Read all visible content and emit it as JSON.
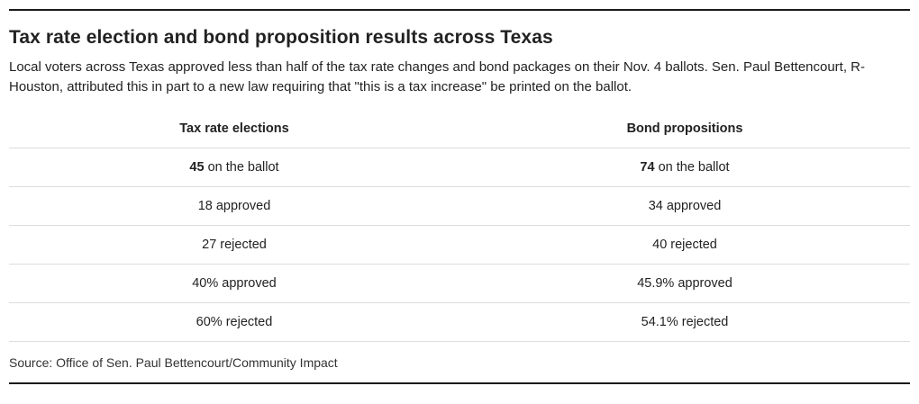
{
  "header": {
    "title": "Tax rate election and bond proposition results across Texas",
    "subtitle": "Local voters across Texas approved less than half of the tax rate changes and bond packages on their Nov. 4 ballots. Sen. Paul Bettencourt, R-Houston, attributed this in part to a new law requiring that \"this is a tax increase\" be printed on the ballot."
  },
  "table": {
    "columns": {
      "tax": "Tax rate elections",
      "bond": "Bond propositions"
    },
    "rows": [
      {
        "cells": [
          {
            "strong": "45",
            "text": " on the ballot"
          },
          {
            "strong": "74",
            "text": " on the ballot"
          }
        ]
      },
      {
        "cells": [
          {
            "strong": "",
            "text": "18 approved"
          },
          {
            "strong": "",
            "text": "34 approved"
          }
        ]
      },
      {
        "cells": [
          {
            "strong": "",
            "text": "27 rejected"
          },
          {
            "strong": "",
            "text": "40 rejected"
          }
        ]
      },
      {
        "cells": [
          {
            "strong": "",
            "text": "40% approved"
          },
          {
            "strong": "",
            "text": "45.9% approved"
          }
        ]
      },
      {
        "cells": [
          {
            "strong": "",
            "text": "60% rejected"
          },
          {
            "strong": "",
            "text": "54.1% rejected"
          }
        ]
      }
    ]
  },
  "source": "Source: Office of Sen. Paul Bettencourt/Community Impact",
  "colors": {
    "rule_dark": "#1a1a1a",
    "rule_light": "#dddddd",
    "text": "#222222"
  },
  "chart_data": {
    "type": "table",
    "title": "Tax rate election and bond proposition results across Texas",
    "columns": [
      "Tax rate elections",
      "Bond propositions"
    ],
    "rows": [
      [
        "45 on the ballot",
        "74 on the ballot"
      ],
      [
        "18 approved",
        "34 approved"
      ],
      [
        "27 rejected",
        "40 rejected"
      ],
      [
        "40% approved",
        "45.9% approved"
      ],
      [
        "60% rejected",
        "54.1% rejected"
      ]
    ],
    "numeric_summary": {
      "tax_rate_elections": {
        "on_ballot": 45,
        "approved": 18,
        "rejected": 27,
        "pct_approved": 40,
        "pct_rejected": 60
      },
      "bond_propositions": {
        "on_ballot": 74,
        "approved": 34,
        "rejected": 40,
        "pct_approved": 45.9,
        "pct_rejected": 54.1
      }
    }
  }
}
